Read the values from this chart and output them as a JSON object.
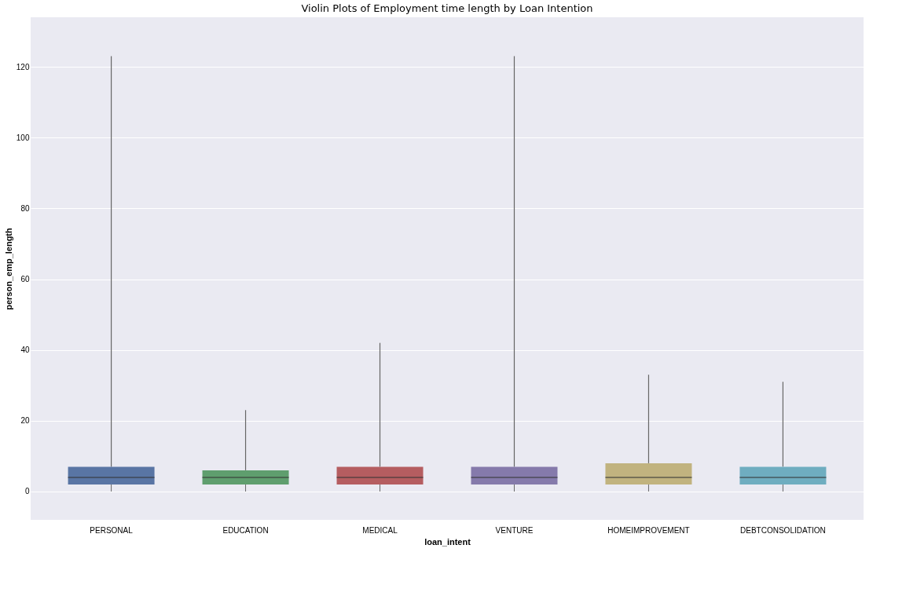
{
  "chart_data": {
    "type": "box",
    "title": "Violin Plots of Employment time length by Loan Intention",
    "xlabel": "loan_intent",
    "ylabel": "person_emp_length",
    "categories": [
      "PERSONAL",
      "EDUCATION",
      "MEDICAL",
      "VENTURE",
      "HOMEIMPROVEMENT",
      "DEBTCONSOLIDATION"
    ],
    "colors": [
      "#5975a4",
      "#5f9e6e",
      "#b55d60",
      "#857aab",
      "#c1b37f",
      "#6fadc0"
    ],
    "boxes": [
      {
        "low": 0,
        "q1": 2,
        "median": 4,
        "q3": 7,
        "high": 123
      },
      {
        "low": 0,
        "q1": 2,
        "median": 4,
        "q3": 6,
        "high": 23
      },
      {
        "low": 0,
        "q1": 2,
        "median": 4,
        "q3": 7,
        "high": 42
      },
      {
        "low": 0,
        "q1": 2,
        "median": 4,
        "q3": 7,
        "high": 123
      },
      {
        "low": 0,
        "q1": 2,
        "median": 4,
        "q3": 8,
        "high": 33
      },
      {
        "low": 0,
        "q1": 2,
        "median": 4,
        "q3": 7,
        "high": 31
      }
    ],
    "ylim": [
      -8,
      134
    ],
    "yticks": [
      0,
      20,
      40,
      60,
      80,
      100,
      120
    ],
    "grid": "y"
  }
}
